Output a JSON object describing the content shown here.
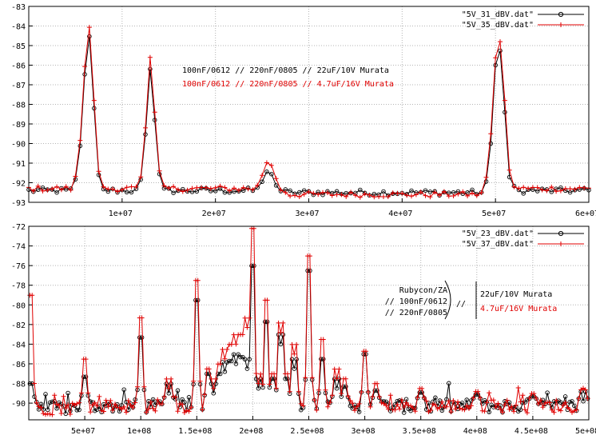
{
  "colors": {
    "series_a": "#000000",
    "series_b": "#e00000",
    "grid": "#b4b4b4",
    "frame": "#000000"
  },
  "chart_data": [
    {
      "type": "line",
      "title": "",
      "xlabel": "",
      "ylabel": "",
      "xlim": [
        0,
        60000000
      ],
      "ylim": [
        -93,
        -83
      ],
      "x_ticks": [
        10000000,
        20000000,
        30000000,
        40000000,
        50000000,
        60000000
      ],
      "x_tick_labels": [
        "1e+07",
        "2e+07",
        "3e+07",
        "4e+07",
        "5e+07",
        "6e+07"
      ],
      "y_ticks": [
        -93,
        -92,
        -91,
        -90,
        -89,
        -88,
        -87,
        -86,
        -85,
        -84,
        -83
      ],
      "grid": true,
      "legend_position": "top-right",
      "annotation_lines": [
        {
          "text": "100nF/0612 // 220nF/0805 // 22uF/10V Murata",
          "color": "#000000"
        },
        {
          "text": "100nF/0612 // 220nF/0805 // 4.7uF/16V Murata",
          "color": "#e00000"
        }
      ],
      "series": [
        {
          "name": "\"5V_31_dBV.dat\"",
          "marker": "circle",
          "color": "#000000",
          "points": [
            [
              0,
              -92.4
            ],
            [
              4600000,
              -92.4
            ],
            [
              5300000,
              -91.4
            ],
            [
              5800000,
              -88.2
            ],
            [
              6100000,
              -85.6
            ],
            [
              6400000,
              -84.0
            ],
            [
              6700000,
              -85.6
            ],
            [
              7000000,
              -88.2
            ],
            [
              7400000,
              -91.4
            ],
            [
              7900000,
              -92.4
            ],
            [
              11800000,
              -92.4
            ],
            [
              12300000,
              -91.0
            ],
            [
              12600000,
              -88.8
            ],
            [
              12900000,
              -86.6
            ],
            [
              13050000,
              -86.0
            ],
            [
              13200000,
              -86.6
            ],
            [
              13500000,
              -88.8
            ],
            [
              13800000,
              -91.0
            ],
            [
              14300000,
              -92.4
            ],
            [
              24400000,
              -92.4
            ],
            [
              25200000,
              -91.8
            ],
            [
              25700000,
              -91.2
            ],
            [
              26200000,
              -91.8
            ],
            [
              26900000,
              -92.4
            ],
            [
              28000000,
              -92.5
            ],
            [
              48500000,
              -92.5
            ],
            [
              49300000,
              -91.6
            ],
            [
              49700000,
              -88.4
            ],
            [
              50100000,
              -85.2
            ],
            [
              50400000,
              -85.0
            ],
            [
              50700000,
              -85.8
            ],
            [
              51000000,
              -88.4
            ],
            [
              51400000,
              -91.6
            ],
            [
              52100000,
              -92.4
            ],
            [
              60000000,
              -92.4
            ]
          ]
        },
        {
          "name": "\"5V_35_dBV.dat\"",
          "marker": "plus",
          "color": "#e00000",
          "points": [
            [
              0,
              -92.3
            ],
            [
              4600000,
              -92.3
            ],
            [
              5300000,
              -91.2
            ],
            [
              5800000,
              -87.8
            ],
            [
              6100000,
              -85.2
            ],
            [
              6400000,
              -83.5
            ],
            [
              6700000,
              -85.2
            ],
            [
              7000000,
              -87.8
            ],
            [
              7400000,
              -91.2
            ],
            [
              7900000,
              -92.3
            ],
            [
              11800000,
              -92.3
            ],
            [
              12300000,
              -90.8
            ],
            [
              12600000,
              -88.4
            ],
            [
              12900000,
              -86.2
            ],
            [
              13050000,
              -85.3
            ],
            [
              13200000,
              -86.2
            ],
            [
              13500000,
              -88.4
            ],
            [
              13800000,
              -90.8
            ],
            [
              14300000,
              -92.3
            ],
            [
              24400000,
              -92.3
            ],
            [
              25200000,
              -91.4
            ],
            [
              25700000,
              -90.7
            ],
            [
              26200000,
              -91.4
            ],
            [
              26900000,
              -92.3
            ],
            [
              28000000,
              -92.6
            ],
            [
              48500000,
              -92.6
            ],
            [
              49300000,
              -91.2
            ],
            [
              49700000,
              -87.8
            ],
            [
              50100000,
              -84.9
            ],
            [
              50400000,
              -84.5
            ],
            [
              50700000,
              -85.4
            ],
            [
              51000000,
              -87.8
            ],
            [
              51400000,
              -91.2
            ],
            [
              52100000,
              -92.3
            ],
            [
              60000000,
              -92.3
            ]
          ]
        }
      ]
    },
    {
      "type": "line",
      "title": "",
      "xlabel": "",
      "ylabel": "",
      "xlim": [
        0,
        500000000
      ],
      "ylim": [
        -91.7,
        -72
      ],
      "x_ticks": [
        50000000,
        100000000,
        150000000,
        200000000,
        250000000,
        300000000,
        350000000,
        400000000,
        450000000,
        500000000
      ],
      "x_tick_labels": [
        "5e+07",
        "1e+08",
        "1.5e+08",
        "2e+08",
        "2.5e+08",
        "3e+08",
        "3.5e+08",
        "4e+08",
        "4.5e+08",
        "5e+08"
      ],
      "y_ticks": [
        -90,
        -88,
        -86,
        -84,
        -82,
        -80,
        -78,
        -76,
        -74,
        -72
      ],
      "grid": true,
      "legend_position": "top-right",
      "annotation": {
        "left_lines": [
          "Rubycon/ZA",
          "// 100nF/0612",
          "// 220nF/0805"
        ],
        "middle": "//",
        "right_lines": [
          {
            "text": "22uF/10V Murata",
            "color": "#000000"
          },
          {
            "text": "4.7uF/16V Murata",
            "color": "#e00000"
          }
        ]
      },
      "series": [
        {
          "name": "\"5V_23_dBV.dat\"",
          "marker": "circle",
          "color": "#000000",
          "peaks": [
            [
              2000000,
              -88.5
            ],
            [
              50000000,
              -87.8
            ],
            [
              100000000,
              -83.8
            ],
            [
              125000000,
              -89.0
            ],
            [
              150000000,
              -80.0
            ],
            [
              160000000,
              -87.5
            ],
            [
              165000000,
              -89.0
            ],
            [
              170000000,
              -87.5
            ],
            [
              175000000,
              -86.8
            ],
            [
              180000000,
              -86.2
            ],
            [
              185000000,
              -86.0
            ],
            [
              190000000,
              -85.8
            ],
            [
              195000000,
              -86.5
            ],
            [
              200000000,
              -76.5
            ],
            [
              205000000,
              -88.5
            ],
            [
              212000000,
              -82.2
            ],
            [
              218000000,
              -88.0
            ],
            [
              225000000,
              -84.0
            ],
            [
              230000000,
              -88.0
            ],
            [
              237000000,
              -86.5
            ],
            [
              250000000,
              -77.0
            ],
            [
              262000000,
              -86.0
            ],
            [
              275000000,
              -88.5
            ],
            [
              282000000,
              -88.8
            ],
            [
              300000000,
              -85.5
            ],
            [
              310000000,
              -89.2
            ],
            [
              350000000,
              -89.4
            ],
            [
              400000000,
              -89.6
            ],
            [
              450000000,
              -89.8
            ],
            [
              495000000,
              -89.8
            ]
          ]
        },
        {
          "name": "\"5V_37_dBV.dat\"",
          "marker": "plus",
          "color": "#e00000",
          "peaks": [
            [
              2000000,
              -79.5
            ],
            [
              50000000,
              -86.0
            ],
            [
              100000000,
              -81.8
            ],
            [
              125000000,
              -88.5
            ],
            [
              150000000,
              -78.0
            ],
            [
              160000000,
              -87.0
            ],
            [
              165000000,
              -88.5
            ],
            [
              170000000,
              -86.5
            ],
            [
              175000000,
              -85.5
            ],
            [
              180000000,
              -84.5
            ],
            [
              185000000,
              -84.0
            ],
            [
              190000000,
              -83.5
            ],
            [
              195000000,
              -82.3
            ],
            [
              200000000,
              -72.7
            ],
            [
              205000000,
              -88.0
            ],
            [
              212000000,
              -80.0
            ],
            [
              218000000,
              -87.5
            ],
            [
              225000000,
              -82.8
            ],
            [
              230000000,
              -87.5
            ],
            [
              237000000,
              -85.0
            ],
            [
              250000000,
              -75.5
            ],
            [
              262000000,
              -84.0
            ],
            [
              275000000,
              -87.5
            ],
            [
              282000000,
              -88.0
            ],
            [
              300000000,
              -85.2
            ],
            [
              310000000,
              -88.5
            ],
            [
              350000000,
              -89.0
            ],
            [
              400000000,
              -89.3
            ],
            [
              450000000,
              -89.5
            ],
            [
              495000000,
              -89.6
            ]
          ]
        }
      ]
    }
  ]
}
